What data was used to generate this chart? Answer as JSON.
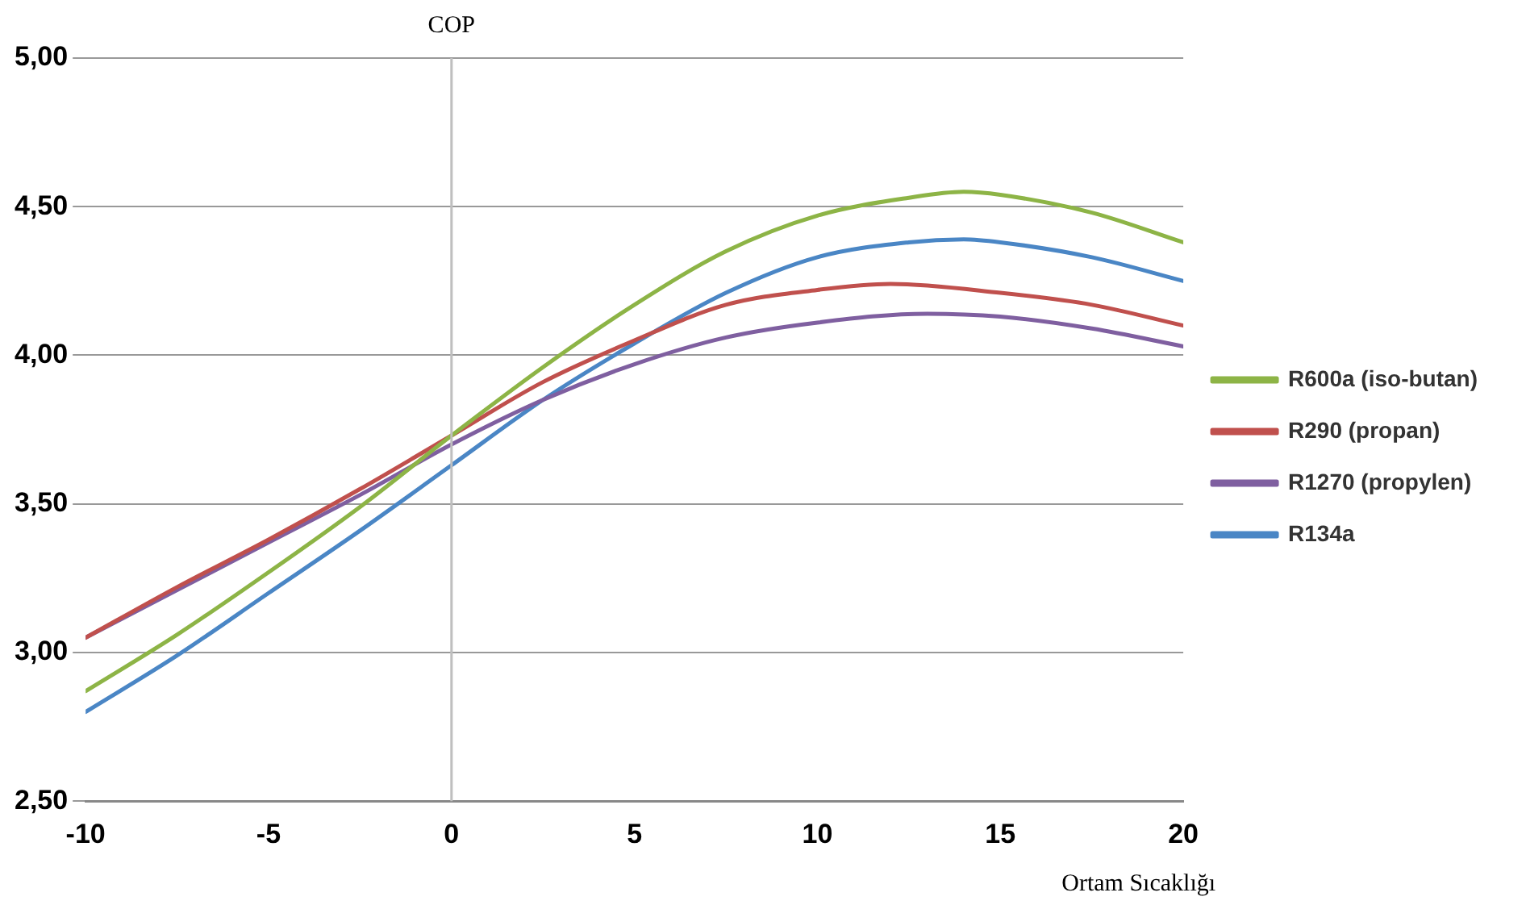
{
  "chart_data": {
    "type": "line",
    "xlabel": "Ortam Sıcaklığı",
    "ylabel": "COP",
    "xlim": [
      -10,
      20
    ],
    "xticks": [
      -10,
      -5,
      0,
      5,
      10,
      15,
      20
    ],
    "ylim": [
      2.5,
      5
    ],
    "yticks": [
      {
        "value": 2.5,
        "label": "2,50"
      },
      {
        "value": 3,
        "label": "3,00"
      },
      {
        "value": 3.5,
        "label": "3,50"
      },
      {
        "value": 4,
        "label": "4,00"
      },
      {
        "value": 4.5,
        "label": "4,50"
      },
      {
        "value": 5,
        "label": "5,00"
      }
    ],
    "grid": "y",
    "legend": "right",
    "marker": "none",
    "line_style": "solid",
    "ref_lines": [
      {
        "axis": "x",
        "value": 0,
        "color": "#bfbfbf"
      }
    ],
    "series": [
      {
        "name": "R600a (iso-butan)",
        "color": "#8db446",
        "x": [
          -10,
          -7.5,
          -5,
          -2.5,
          0,
          2.5,
          5,
          7.5,
          10,
          12.5,
          14,
          15,
          17.5,
          20
        ],
        "values": [
          2.87,
          3.06,
          3.27,
          3.49,
          3.73,
          3.96,
          4.17,
          4.35,
          4.47,
          4.53,
          4.55,
          4.54,
          4.48,
          4.38
        ]
      },
      {
        "name": "R290 (propan)",
        "color": "#c0504d",
        "x": [
          -10,
          -7.5,
          -5,
          -2.5,
          0,
          2.5,
          5,
          7.5,
          10,
          12,
          15,
          17.5,
          20
        ],
        "values": [
          3.05,
          3.22,
          3.38,
          3.55,
          3.73,
          3.91,
          4.05,
          4.17,
          4.22,
          4.24,
          4.21,
          4.17,
          4.1
        ]
      },
      {
        "name": "R1270 (propylen)",
        "color": "#7f5fa0",
        "x": [
          -10,
          -7.5,
          -5,
          -2.5,
          0,
          2.5,
          5,
          7.5,
          10,
          13,
          15,
          17.5,
          20
        ],
        "values": [
          3.05,
          3.21,
          3.37,
          3.53,
          3.7,
          3.85,
          3.97,
          4.06,
          4.11,
          4.14,
          4.13,
          4.09,
          4.03
        ]
      },
      {
        "name": "R134a",
        "color": "#4a86c5",
        "x": [
          -10,
          -7.5,
          -5,
          -2.5,
          0,
          2.5,
          5,
          7.5,
          10,
          12.5,
          14,
          15,
          17.5,
          20
        ],
        "values": [
          2.8,
          2.99,
          3.2,
          3.41,
          3.63,
          3.85,
          4.04,
          4.21,
          4.33,
          4.38,
          4.39,
          4.38,
          4.33,
          4.25
        ]
      }
    ]
  }
}
